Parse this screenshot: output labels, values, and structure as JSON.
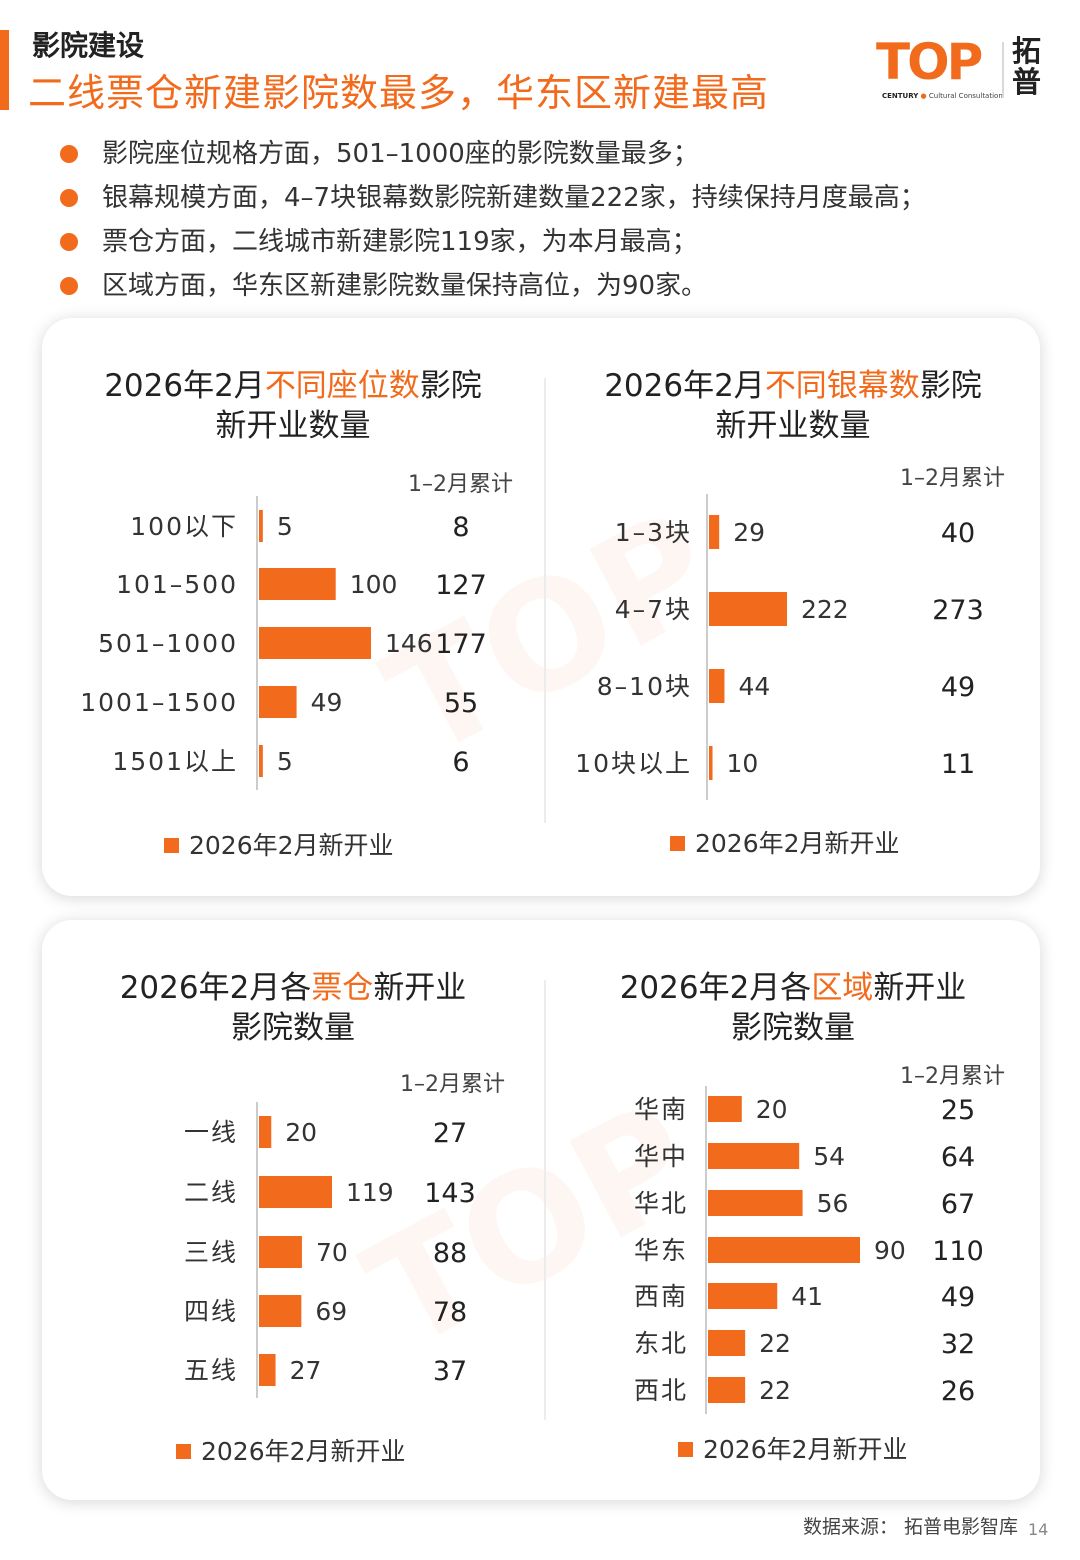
{
  "header": {
    "section_label": "影院建设",
    "headline": "二线票仓新建影院数最多，华东区新建最高"
  },
  "logo": {
    "word": "TOP",
    "tagline_bold": "CENTURY",
    "tagline_rest": "Cultural Consultation",
    "cn": "拓普"
  },
  "bullets": [
    "影院座位规格方面，501–1000座的影院数量最多；",
    "银幕规模方面，4–7块银幕数影院新建数量222家，持续保持月度最高；",
    "票仓方面，二线城市新建影院119家，为本月最高；",
    "区域方面，华东区新建影院数量保持高位，为90家。"
  ],
  "colors": {
    "accent": "#f26b1d",
    "axis": "#cccccc",
    "text": "#333333"
  },
  "chart_data": [
    {
      "type": "bar",
      "orientation": "horizontal",
      "title_pre": "2026年2月",
      "title_hl": "不同座位数",
      "title_post": "影院",
      "title_line2": "新开业数量",
      "cumulative_header": "1–2月累计",
      "legend": "2026年2月新开业",
      "categories": [
        "100以下",
        "101–500",
        "501–1000",
        "1001–1500",
        "1501以上"
      ],
      "values": [
        5,
        100,
        146,
        49,
        5
      ],
      "cumulative": [
        "8",
        "127",
        "177",
        "55",
        "6"
      ],
      "xlim": [
        0,
        146
      ]
    },
    {
      "type": "bar",
      "orientation": "horizontal",
      "title_pre": "2026年2月",
      "title_hl": "不同银幕数",
      "title_post": "影院",
      "title_line2": "新开业数量",
      "cumulative_header": "1–2月累计",
      "legend": "2026年2月新开业",
      "categories": [
        "1–3块",
        "4–7块",
        "8–10块",
        "10块以上"
      ],
      "values": [
        29,
        222,
        44,
        10
      ],
      "cumulative": [
        "40",
        "273",
        "49",
        "11"
      ],
      "xlim": [
        0,
        222
      ]
    },
    {
      "type": "bar",
      "orientation": "horizontal",
      "title_pre": "2026年2月各",
      "title_hl": "票仓",
      "title_post": "新开业",
      "title_line2": "影院数量",
      "cumulative_header": "1–2月累计",
      "legend": "2026年2月新开业",
      "categories": [
        "一线",
        "二线",
        "三线",
        "四线",
        "五线"
      ],
      "values": [
        20,
        119,
        70,
        69,
        27
      ],
      "cumulative": [
        "27",
        "143",
        "88",
        "78",
        "37"
      ],
      "xlim": [
        0,
        119
      ]
    },
    {
      "type": "bar",
      "orientation": "horizontal",
      "title_pre": "2026年2月各",
      "title_hl": "区域",
      "title_post": "新开业",
      "title_line2": "影院数量",
      "cumulative_header": "1–2月累计",
      "legend": "2026年2月新开业",
      "categories": [
        "华南",
        "华中",
        "华北",
        "华东",
        "西南",
        "东北",
        "西北"
      ],
      "values": [
        20,
        54,
        56,
        90,
        41,
        22,
        22
      ],
      "cumulative": [
        "25",
        "64",
        "67",
        "110",
        "49",
        "32",
        "26"
      ],
      "xlim": [
        0,
        90
      ]
    }
  ],
  "footer": {
    "source": "数据来源：  拓普电影智库",
    "page": "14"
  }
}
